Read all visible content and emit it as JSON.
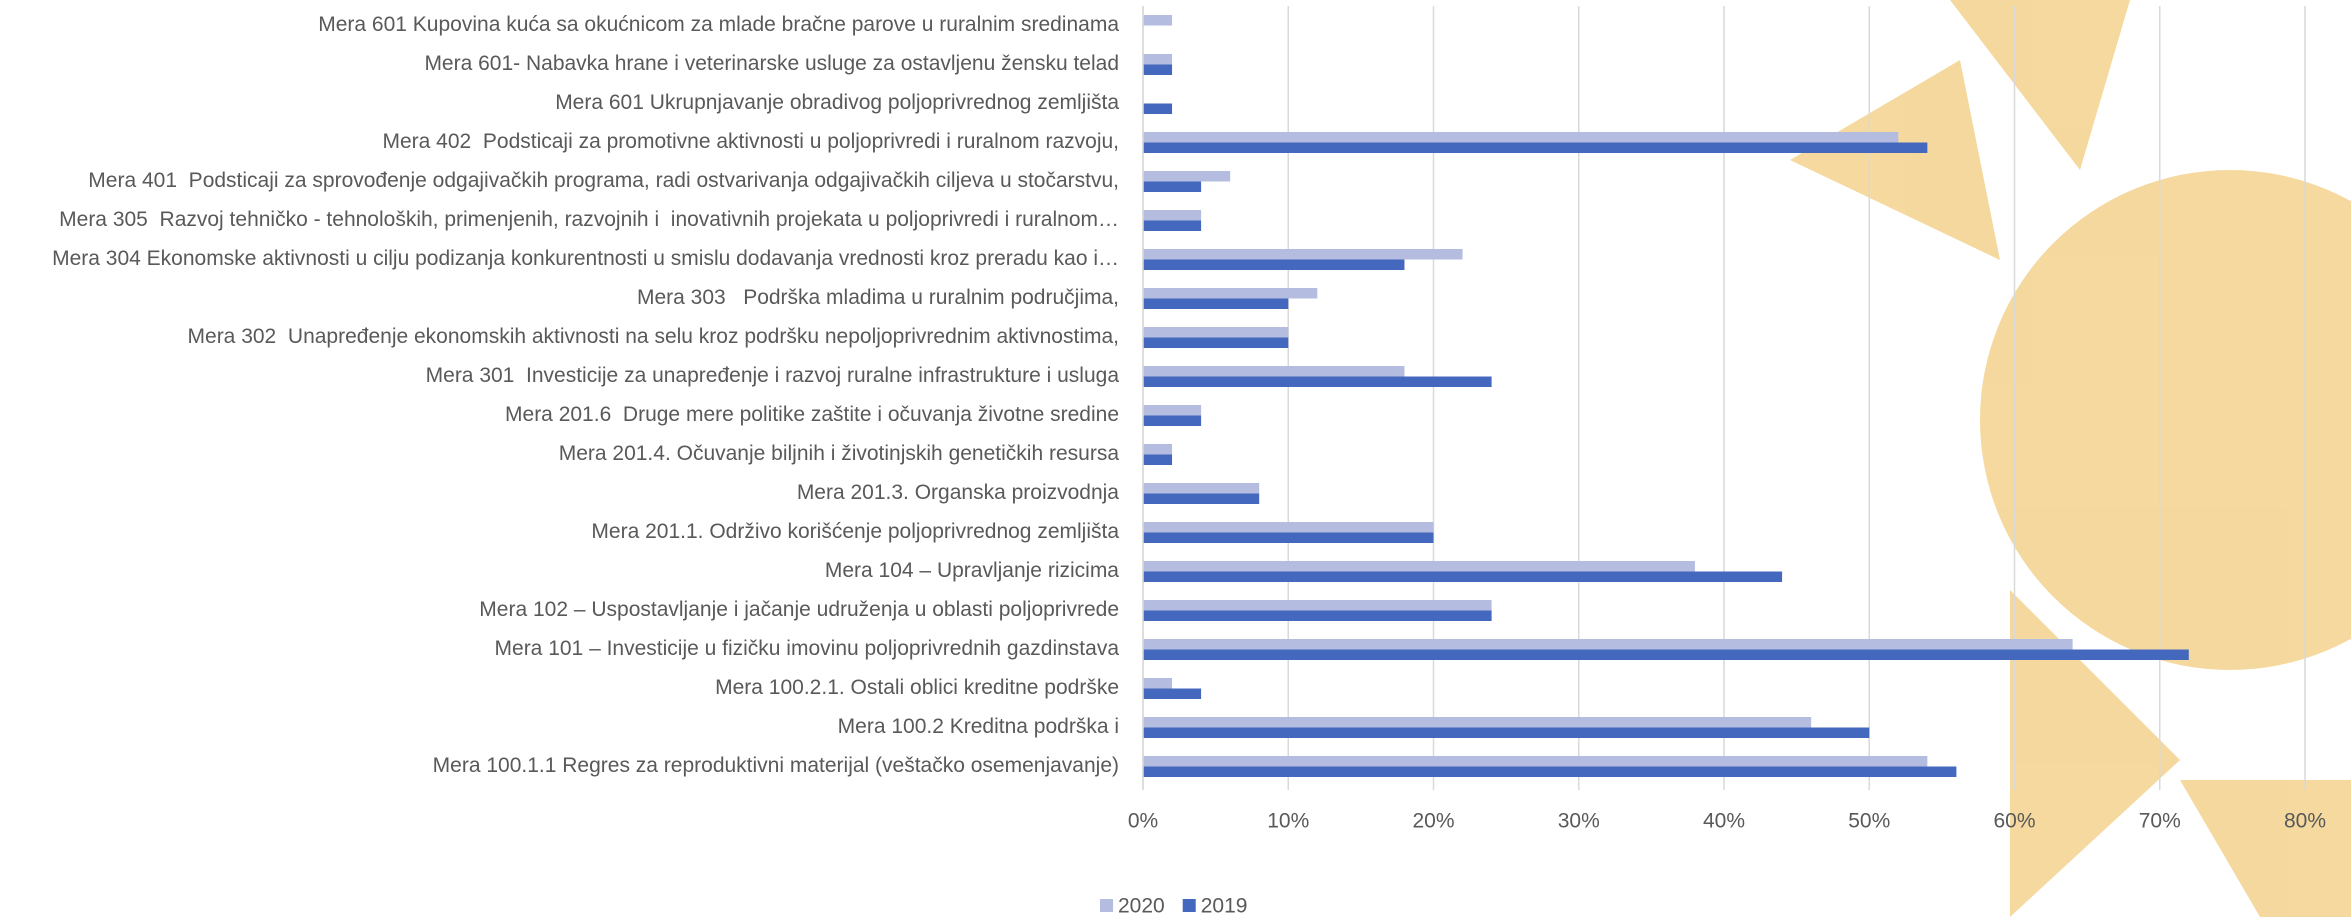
{
  "chart_data": {
    "type": "hbar",
    "categories": [
      "Mera 601 Kupovina kuća sa okućnicom za mlade bračne parove u ruralnim sredinama",
      "Mera 601- Nabavka hrane i veterinarske usluge za ostavljenu žensku telad",
      "Mera 601 Ukrupnjavanje obradivog poljoprivrednog zemljišta",
      "Mera 402  Podsticaji za promotivne aktivnosti u poljoprivredi i ruralnom razvoju,",
      "Mera 401  Podsticaji za sprovođenje odgajivačkih programa, radi ostvarivanja odgajivačkih ciljeva u stočarstvu,",
      "Mera 305  Razvoj tehničko - tehnoloških, primenjenih, razvojnih i  inovativnih projekata u poljoprivredi i ruralnom…",
      "Mera 304 Ekonomske aktivnosti u cilju podizanja konkurentnosti u smislu dodavanja vrednosti kroz preradu kao i…",
      "Mera 303   Podrška mladima u ruralnim područjima,",
      "Mera 302  Unapređenje ekonomskih aktivnosti na selu kroz podršku nepoljoprivrednim aktivnostima,",
      "Mera 301  Investicije za unapređenje i razvoj ruralne infrastrukture i usluga",
      "Mera 201.6  Druge mere politike zaštite i očuvanja životne sredine",
      "Mera 201.4. Očuvanje biljnih i životinjskih genetičkih resursa",
      "Mera 201.3. Organska proizvodnja",
      "Mera 201.1. Održivo korišćenje poljoprivrednog zemljišta",
      "Mera 104 – Upravljanje rizicima",
      "Mera 102 – Uspostavljanje i jačanje udruženja u oblasti poljoprivrede",
      "Mera 101 – Investicije u fizičku imovinu poljoprivrednih gazdinstava",
      "Mera 100.2.1. Ostali oblici kreditne podrške",
      "Mera 100.2 Kreditna podrška i",
      "Mera 100.1.1 Regres za reproduktivni materijal (veštačko osemenjavanje)"
    ],
    "series": [
      {
        "name": "2020",
        "color": "#b4bde0",
        "values": [
          2,
          2,
          0,
          52,
          6,
          4,
          22,
          12,
          10,
          18,
          4,
          2,
          8,
          20,
          38,
          24,
          64,
          2,
          46,
          54
        ]
      },
      {
        "name": "2019",
        "color": "#4468be",
        "values": [
          0,
          2,
          2,
          54,
          4,
          4,
          18,
          10,
          10,
          24,
          4,
          2,
          8,
          20,
          44,
          24,
          72,
          4,
          50,
          56
        ]
      }
    ],
    "xlim": [
      0,
      80
    ],
    "xticks": [
      {
        "value": 0,
        "label": "0%"
      },
      {
        "value": 10,
        "label": "10%"
      },
      {
        "value": 20,
        "label": "20%"
      },
      {
        "value": 30,
        "label": "30%"
      },
      {
        "value": 40,
        "label": "40%"
      },
      {
        "value": 50,
        "label": "50%"
      },
      {
        "value": 60,
        "label": "60%"
      },
      {
        "value": 70,
        "label": "70%"
      },
      {
        "value": 80,
        "label": "80%"
      }
    ],
    "grid": true,
    "legend": "bottom"
  }
}
